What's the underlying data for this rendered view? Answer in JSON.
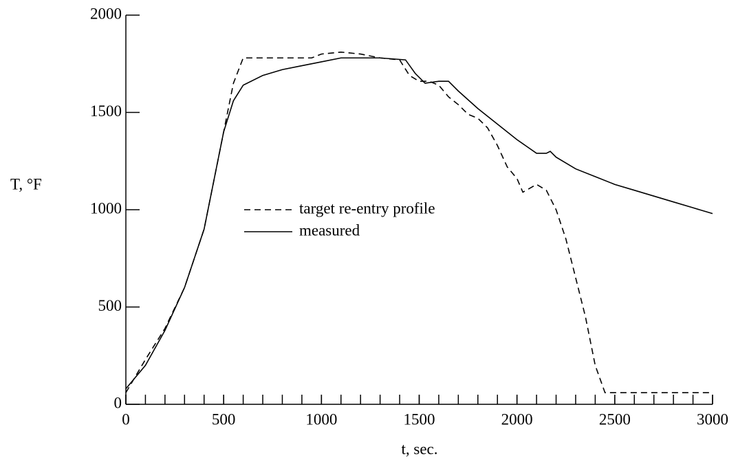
{
  "chart_data": {
    "type": "line",
    "x_label": "t, sec.",
    "y_label": "T, °F",
    "xlim": [
      0,
      3000
    ],
    "xticks": [
      0,
      500,
      1000,
      1500,
      2000,
      2500,
      3000
    ],
    "xminorticks": [
      0,
      100,
      200,
      300,
      400,
      500,
      600,
      700,
      800,
      900,
      1000,
      1100,
      1200,
      1300,
      1400,
      1500,
      1600,
      1700,
      1800,
      1900,
      2000,
      2100,
      2200,
      2300,
      2400,
      2500,
      2600,
      2700,
      2800,
      2900,
      3000
    ],
    "ylim": [
      0,
      2000
    ],
    "yticks": [
      0,
      500,
      1000,
      1500,
      2000
    ],
    "grid": false,
    "series": [
      {
        "name": "target re-entry profile",
        "color": "#000000",
        "dash": true,
        "x": [
          0,
          100,
          200,
          300,
          400,
          450,
          500,
          550,
          600,
          700,
          800,
          950,
          1000,
          1100,
          1200,
          1300,
          1400,
          1450,
          1500,
          1550,
          1600,
          1650,
          1700,
          1750,
          1800,
          1850,
          1900,
          1950,
          2000,
          2030,
          2100,
          2150,
          2200,
          2250,
          2300,
          2350,
          2400,
          2450,
          2500,
          3000
        ],
        "values": [
          60,
          230,
          390,
          600,
          900,
          1150,
          1400,
          1650,
          1780,
          1780,
          1780,
          1780,
          1800,
          1810,
          1800,
          1780,
          1770,
          1690,
          1660,
          1660,
          1640,
          1580,
          1540,
          1490,
          1470,
          1420,
          1330,
          1220,
          1160,
          1090,
          1130,
          1100,
          1000,
          850,
          650,
          450,
          200,
          60,
          60,
          60
        ]
      },
      {
        "name": "measured",
        "color": "#000000",
        "dash": false,
        "x": [
          0,
          100,
          200,
          300,
          400,
          450,
          500,
          550,
          600,
          700,
          800,
          900,
          1000,
          1100,
          1200,
          1300,
          1430,
          1480,
          1530,
          1600,
          1650,
          1700,
          1800,
          1900,
          2000,
          2100,
          2150,
          2170,
          2200,
          2300,
          2400,
          2500,
          2600,
          2700,
          2800,
          2900,
          3000
        ],
        "values": [
          80,
          200,
          380,
          600,
          900,
          1150,
          1400,
          1560,
          1640,
          1690,
          1720,
          1740,
          1760,
          1780,
          1780,
          1780,
          1770,
          1700,
          1650,
          1660,
          1660,
          1610,
          1520,
          1440,
          1360,
          1290,
          1290,
          1300,
          1270,
          1210,
          1170,
          1130,
          1100,
          1070,
          1040,
          1010,
          980
        ]
      }
    ]
  }
}
